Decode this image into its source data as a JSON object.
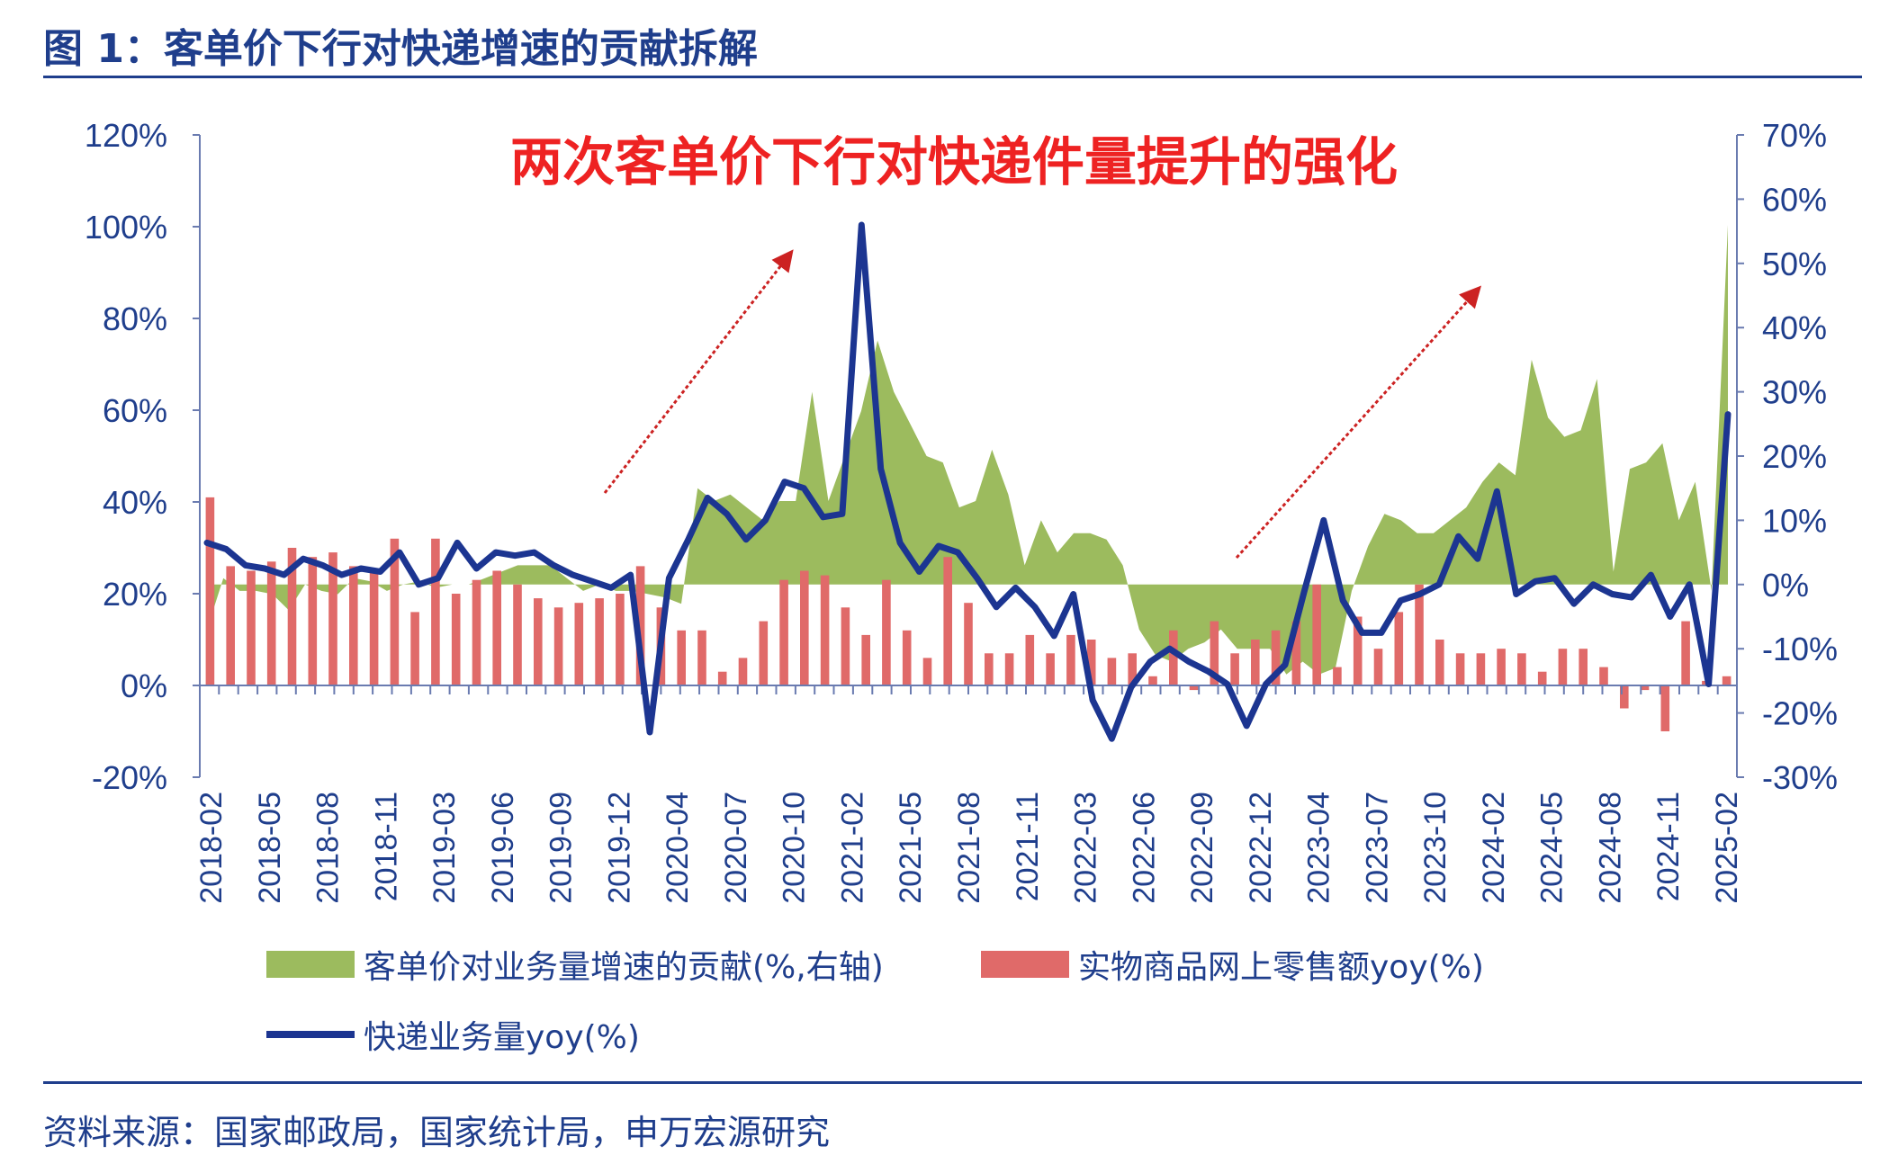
{
  "figure_title": "图 1：客单价下行对快递增速的贡献拆解",
  "source": "资料来源：国家邮政局，国家统计局，申万宏源研究",
  "colors": {
    "contribution": "#9cbb5e",
    "online_retail": "#e06a69",
    "express": "#1c3591",
    "axis_text": "#1f3e8c",
    "annotation": "#ee2222"
  },
  "chart_data": {
    "type": "combo",
    "annotation": "两次客单价下行对快递件量提升的强化",
    "x_tick_labels": [
      "2018-02",
      "2018-05",
      "2018-08",
      "2018-11",
      "2019-03",
      "2019-06",
      "2019-09",
      "2019-12",
      "2020-04",
      "2020-07",
      "2020-10",
      "2021-02",
      "2021-05",
      "2021-08",
      "2021-11",
      "2022-03",
      "2022-06",
      "2022-09",
      "2022-12",
      "2023-04",
      "2023-07",
      "2023-10",
      "2024-02",
      "2024-05",
      "2024-08",
      "2024-11",
      "2025-02"
    ],
    "y_left": {
      "min": -20,
      "max": 120,
      "step": 20,
      "ticks": [
        "-20%",
        "0%",
        "20%",
        "40%",
        "60%",
        "80%",
        "100%",
        "120%"
      ]
    },
    "y_right": {
      "min": -30,
      "max": 70,
      "step": 10,
      "ticks": [
        "-30%",
        "-20%",
        "-10%",
        "0%",
        "10%",
        "20%",
        "30%",
        "40%",
        "50%",
        "60%",
        "70%"
      ]
    },
    "series": [
      {
        "name": "客单价对业务量增速的贡献(%,右轴)",
        "type": "area",
        "axis": "right",
        "values": [
          -7,
          1,
          -1,
          -1,
          -1.5,
          -4,
          0,
          -1,
          -1.5,
          1,
          0.5,
          -1,
          0,
          0.5,
          -0.5,
          0,
          0,
          1,
          2,
          3,
          3,
          3,
          1,
          -1,
          0,
          -1,
          -1,
          -1.5,
          -2,
          -3,
          15,
          13,
          14,
          12,
          10,
          13,
          13,
          30,
          13,
          20,
          27,
          38,
          30,
          25,
          20,
          19,
          12,
          13,
          21,
          14,
          3,
          10,
          5,
          8,
          8,
          7,
          3,
          -7,
          -11,
          -12,
          -10,
          -9,
          -7,
          -10,
          -10,
          -10,
          -14,
          -12,
          -14,
          -13,
          -1,
          6,
          11,
          10,
          8,
          8,
          10,
          12,
          16,
          19,
          17,
          35,
          26,
          23,
          24,
          32,
          2,
          18,
          19,
          22,
          10,
          16,
          -1,
          56
        ],
        "label_visible": true
      },
      {
        "name": "实物商品网上零售额yoy(%)",
        "type": "bar",
        "axis": "left",
        "values": [
          41,
          26,
          25,
          27,
          30,
          28,
          29,
          26,
          25,
          32,
          16,
          32,
          20,
          23,
          25,
          22,
          19,
          17,
          18,
          19,
          20,
          26,
          17,
          12,
          12,
          3,
          6,
          14,
          23,
          25,
          24,
          17,
          11,
          23,
          12,
          6,
          28,
          18,
          7,
          7,
          11,
          7,
          11,
          10,
          6,
          7,
          2,
          12,
          -1,
          14,
          7,
          10,
          12,
          14,
          22,
          4,
          15,
          8,
          16,
          22,
          10,
          7,
          7,
          8,
          7,
          3,
          8,
          8,
          4,
          -5,
          -1,
          -10,
          14,
          1,
          2
        ],
        "label_visible": true
      },
      {
        "name": "快递业务量yoy(%)",
        "type": "line",
        "axis": "right",
        "values": [
          6.5,
          5.5,
          3,
          2.5,
          1.5,
          4,
          3,
          1.5,
          2.5,
          2,
          5,
          0,
          1,
          6.5,
          2.5,
          5,
          4.5,
          5,
          3,
          1.5,
          0.5,
          -0.5,
          1.5,
          -23,
          1,
          7,
          13.5,
          11,
          7,
          10,
          16,
          15,
          10.5,
          11,
          56,
          18,
          6.5,
          2,
          6,
          5,
          1,
          -3.5,
          -0.5,
          -3.5,
          -8,
          -1.5,
          -18,
          -24,
          -16,
          -12,
          -10,
          -12,
          -13.5,
          -15.5,
          -22,
          -15.5,
          -12.5,
          -1,
          10,
          -2.5,
          -7.5,
          -7.5,
          -2.5,
          -1.5,
          0,
          7.5,
          4,
          14.5,
          -1.5,
          0.5,
          1,
          -3,
          0,
          -1.5,
          -2,
          1.5,
          -5,
          0,
          -15.5,
          26.5
        ],
        "label_visible": true
      }
    ],
    "legend": "bottom"
  }
}
